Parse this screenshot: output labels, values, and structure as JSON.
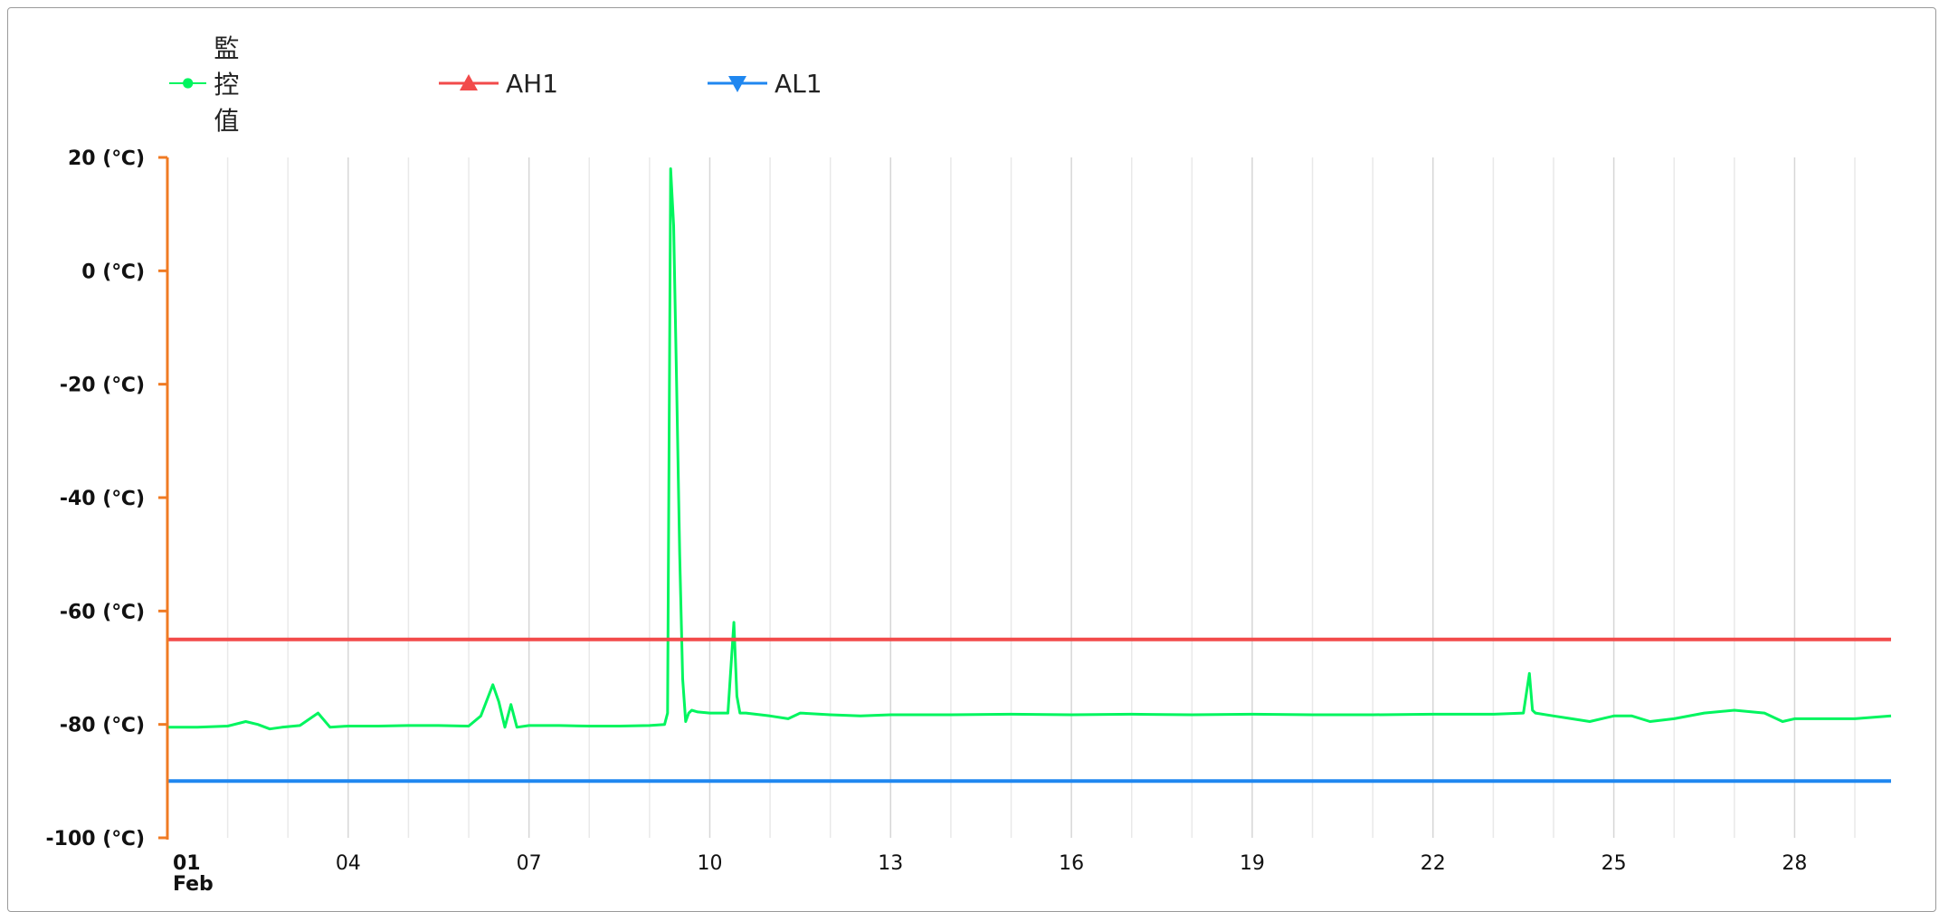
{
  "chart_data": {
    "type": "line",
    "title": "",
    "xlabel": "",
    "ylabel": "",
    "x_unit": "day of February",
    "xlim": [
      1,
      29.6
    ],
    "ylim": [
      -100,
      20
    ],
    "y_ticks": [
      20,
      0,
      -20,
      -40,
      -60,
      -80,
      -100
    ],
    "y_tick_labels": [
      "20 (℃)",
      "0 (℃)",
      "-20 (℃)",
      "-40 (℃)",
      "-60 (℃)",
      "-80 (℃)",
      "-100 (℃)"
    ],
    "x_ticks": [
      1,
      4,
      7,
      10,
      13,
      16,
      19,
      22,
      25,
      28
    ],
    "x_tick_labels": [
      "01",
      "04",
      "07",
      "10",
      "13",
      "16",
      "19",
      "22",
      "25",
      "28"
    ],
    "x_tick_sublabel": "Feb",
    "grid": "vertical-daily",
    "legend_position": "top-left",
    "series": [
      {
        "name": "監控值",
        "color": "#00f55f",
        "marker": "circle",
        "x": [
          1.0,
          1.5,
          2.0,
          2.3,
          2.5,
          2.7,
          2.9,
          3.2,
          3.5,
          3.7,
          4.0,
          4.5,
          5.0,
          5.5,
          6.0,
          6.2,
          6.4,
          6.5,
          6.6,
          6.7,
          6.8,
          7.0,
          7.5,
          8.0,
          8.5,
          9.0,
          9.25,
          9.3,
          9.35,
          9.4,
          9.45,
          9.5,
          9.55,
          9.6,
          9.65,
          9.7,
          9.8,
          10.0,
          10.3,
          10.4,
          10.45,
          10.5,
          10.6,
          11.0,
          11.3,
          11.5,
          12.0,
          12.5,
          13.0,
          14.0,
          15.0,
          16.0,
          17.0,
          18.0,
          19.0,
          20.0,
          21.0,
          22.0,
          23.0,
          23.5,
          23.6,
          23.65,
          23.7,
          24.0,
          24.3,
          24.6,
          25.0,
          25.3,
          25.6,
          26.0,
          26.5,
          27.0,
          27.5,
          27.8,
          28.0,
          28.5,
          29.0,
          29.6
        ],
        "y": [
          -80.5,
          -80.5,
          -80.3,
          -79.5,
          -80.0,
          -80.8,
          -80.5,
          -80.2,
          -78.0,
          -80.5,
          -80.3,
          -80.3,
          -80.2,
          -80.2,
          -80.3,
          -78.5,
          -73.0,
          -76.0,
          -80.5,
          -76.5,
          -80.5,
          -80.2,
          -80.2,
          -80.3,
          -80.3,
          -80.2,
          -80.0,
          -78.0,
          18.0,
          8.0,
          -20.0,
          -50.0,
          -72.0,
          -79.5,
          -78.0,
          -77.5,
          -77.8,
          -78.0,
          -78.0,
          -62.0,
          -75.0,
          -78.0,
          -78.0,
          -78.5,
          -79.0,
          -78.0,
          -78.3,
          -78.5,
          -78.3,
          -78.3,
          -78.2,
          -78.3,
          -78.2,
          -78.3,
          -78.2,
          -78.3,
          -78.3,
          -78.2,
          -78.2,
          -78.0,
          -71.0,
          -77.5,
          -78.0,
          -78.5,
          -79.0,
          -79.5,
          -78.5,
          -78.5,
          -79.5,
          -79.0,
          -78.0,
          -77.5,
          -78.0,
          -79.5,
          -79.0,
          -79.0,
          -79.0,
          -78.5
        ]
      },
      {
        "name": "AH1",
        "color": "#f24a4a",
        "marker": "triangle-up",
        "x": [
          1.0,
          29.6
        ],
        "y": [
          -65,
          -65
        ]
      },
      {
        "name": "AL1",
        "color": "#1f87f0",
        "marker": "triangle-down",
        "x": [
          1.0,
          29.6
        ],
        "y": [
          -90,
          -90
        ]
      }
    ]
  }
}
